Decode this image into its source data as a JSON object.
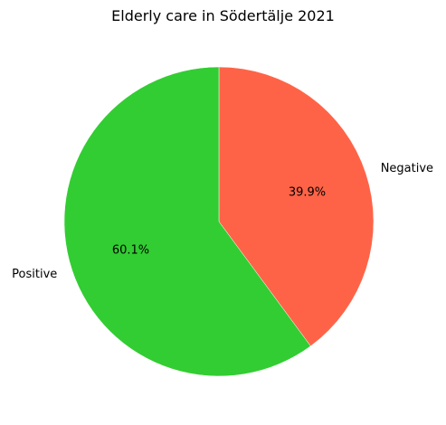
{
  "chart_data": {
    "type": "pie",
    "title": "Elderly care in Södertälje 2021",
    "slices": [
      {
        "label": "Negative",
        "value": 39.9,
        "pct_label": "39.9%",
        "color": "#ff6347"
      },
      {
        "label": "Positive",
        "value": 60.1,
        "pct_label": "60.1%",
        "color": "#32cd32"
      }
    ],
    "start_angle_deg": 90,
    "direction": "clockwise",
    "legend": "none"
  }
}
